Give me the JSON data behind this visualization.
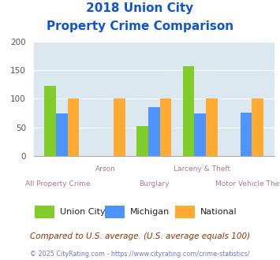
{
  "title_line1": "2018 Union City",
  "title_line2": "Property Crime Comparison",
  "categories": [
    "All Property Crime",
    "Arson",
    "Burglary",
    "Larceny & Theft",
    "Motor Vehicle Theft"
  ],
  "cat_labels_bottom": [
    "All Property Crime",
    "",
    "Burglary",
    "",
    "Motor Vehicle Theft"
  ],
  "cat_labels_top": [
    "",
    "Arson",
    "",
    "Larceny & Theft",
    ""
  ],
  "union_city": [
    123,
    null,
    52,
    157,
    null
  ],
  "michigan": [
    75,
    null,
    85,
    74,
    76
  ],
  "national": [
    100,
    100,
    100,
    100,
    100
  ],
  "colors": {
    "union_city": "#80cc28",
    "michigan": "#4d94ff",
    "national": "#ffaa33"
  },
  "ylim": [
    0,
    200
  ],
  "yticks": [
    0,
    50,
    100,
    150,
    200
  ],
  "bar_width": 0.25,
  "plot_bg": "#dce8f0",
  "label_color": "#aa7799",
  "title_color": "#1155cc",
  "legend_labels": [
    "Union City",
    "Michigan",
    "National"
  ],
  "footer_text": "Compared to U.S. average. (U.S. average equals 100)",
  "copyright_text": "© 2025 CityRating.com - https://www.cityrating.com/crime-statistics/"
}
